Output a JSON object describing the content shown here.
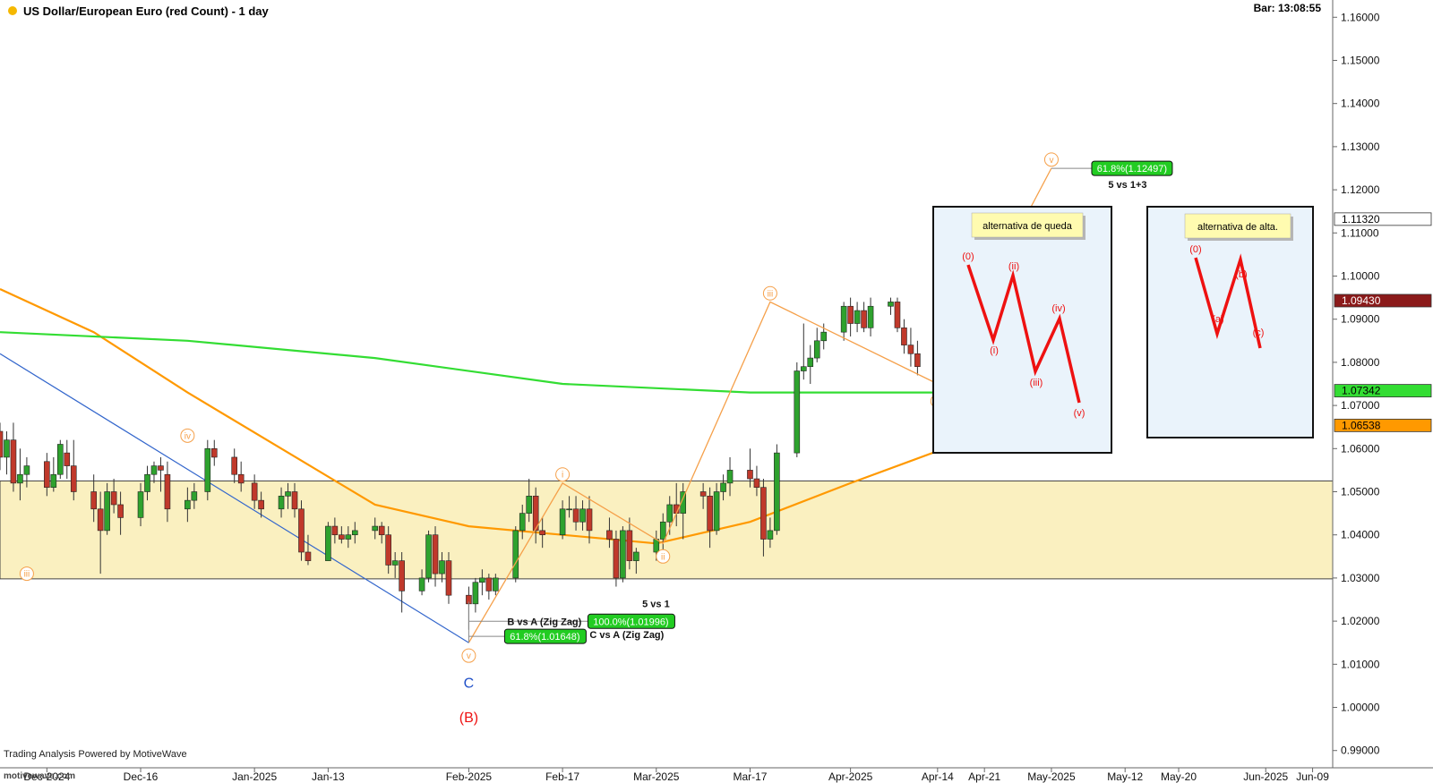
{
  "header": {
    "title": "US Dollar/European Euro (red Count) - 1 day",
    "bar_time": "Bar: 13:08:55"
  },
  "footer": {
    "powered_by": "Trading Analysis Powered by MotiveWave",
    "watermark": "motivewave.com"
  },
  "colors": {
    "up_candle": "#2ea22e",
    "down_candle": "#c0392b",
    "ma_fast": "#ff9900",
    "ma_slow": "#33dd33",
    "zone_fill": "#faf0c0",
    "wave_orange": "#f5a04a",
    "trendline": "#3366cc",
    "red_wave": "#ee1111",
    "box_bg": "#eaf3fb",
    "fib_green": "#22cc22"
  },
  "chart_data": {
    "type": "candlestick",
    "instrument": "US Dollar/European Euro",
    "timeframe": "1 day",
    "y_axis": {
      "ylim": [
        0.986,
        1.164
      ],
      "ticks": [
        0.99,
        1.0,
        1.01,
        1.02,
        1.03,
        1.04,
        1.05,
        1.06,
        1.07,
        1.08,
        1.09,
        1.1,
        1.11,
        1.12,
        1.13,
        1.14,
        1.15,
        1.16
      ],
      "tick_labels": [
        "0.99000",
        "1.00000",
        "1.01000",
        "1.02000",
        "1.03000",
        "1.04000",
        "1.05000",
        "1.06000",
        "1.07000",
        "1.08000",
        "1.09000",
        "1.10000",
        "1.11000",
        "1.12000",
        "1.13000",
        "1.14000",
        "1.15000",
        "1.16000"
      ]
    },
    "x_axis": {
      "date_range": [
        "2024-11-25",
        "2025-06-12"
      ],
      "ticks": [
        {
          "date": "2024-12-02",
          "label": "Dec-2024"
        },
        {
          "date": "2024-12-16",
          "label": "Dec-16"
        },
        {
          "date": "2025-01-02",
          "label": "Jan-2025"
        },
        {
          "date": "2025-01-13",
          "label": "Jan-13"
        },
        {
          "date": "2025-02-03",
          "label": "Feb-2025"
        },
        {
          "date": "2025-02-17",
          "label": "Feb-17"
        },
        {
          "date": "2025-03-03",
          "label": "Mar-2025"
        },
        {
          "date": "2025-03-17",
          "label": "Mar-17"
        },
        {
          "date": "2025-04-01",
          "label": "Apr-2025"
        },
        {
          "date": "2025-04-14",
          "label": "Apr-14"
        },
        {
          "date": "2025-04-21",
          "label": "Apr-21"
        },
        {
          "date": "2025-05-01",
          "label": "May-2025"
        },
        {
          "date": "2025-05-12",
          "label": "May-12"
        },
        {
          "date": "2025-05-20",
          "label": "May-20"
        },
        {
          "date": "2025-06-02",
          "label": "Jun-2025"
        },
        {
          "date": "2025-06-09",
          "label": "Jun-09"
        }
      ]
    },
    "ohlc": [
      [
        "2024-11-25",
        1.064,
        1.066,
        1.055,
        1.058
      ],
      [
        "2024-11-26",
        1.058,
        1.064,
        1.054,
        1.062
      ],
      [
        "2024-11-27",
        1.062,
        1.066,
        1.05,
        1.052
      ],
      [
        "2024-11-28",
        1.052,
        1.06,
        1.048,
        1.054
      ],
      [
        "2024-11-29",
        1.054,
        1.058,
        1.051,
        1.056
      ],
      [
        "2024-12-02",
        1.057,
        1.059,
        1.049,
        1.051
      ],
      [
        "2024-12-03",
        1.051,
        1.058,
        1.05,
        1.054
      ],
      [
        "2024-12-04",
        1.054,
        1.062,
        1.053,
        1.061
      ],
      [
        "2024-12-05",
        1.059,
        1.062,
        1.053,
        1.056
      ],
      [
        "2024-12-06",
        1.056,
        1.062,
        1.048,
        1.05
      ],
      [
        "2024-12-09",
        1.05,
        1.054,
        1.043,
        1.046
      ],
      [
        "2024-12-10",
        1.046,
        1.05,
        1.031,
        1.041
      ],
      [
        "2024-12-11",
        1.041,
        1.052,
        1.04,
        1.05
      ],
      [
        "2024-12-12",
        1.05,
        1.053,
        1.045,
        1.047
      ],
      [
        "2024-12-13",
        1.047,
        1.05,
        1.04,
        1.044
      ],
      [
        "2024-12-16",
        1.044,
        1.052,
        1.042,
        1.05
      ],
      [
        "2024-12-17",
        1.05,
        1.056,
        1.048,
        1.054
      ],
      [
        "2024-12-18",
        1.054,
        1.057,
        1.052,
        1.056
      ],
      [
        "2024-12-19",
        1.056,
        1.058,
        1.05,
        1.055
      ],
      [
        "2024-12-20",
        1.054,
        1.057,
        1.043,
        1.046
      ],
      [
        "2024-12-23",
        1.046,
        1.051,
        1.043,
        1.048
      ],
      [
        "2024-12-24",
        1.048,
        1.052,
        1.046,
        1.05
      ],
      [
        "2024-12-26",
        1.05,
        1.062,
        1.048,
        1.06
      ],
      [
        "2024-12-27",
        1.06,
        1.062,
        1.056,
        1.058
      ],
      [
        "2024-12-30",
        1.058,
        1.06,
        1.052,
        1.054
      ],
      [
        "2024-12-31",
        1.054,
        1.057,
        1.05,
        1.052
      ],
      [
        "2025-01-02",
        1.052,
        1.054,
        1.046,
        1.048
      ],
      [
        "2025-01-03",
        1.048,
        1.05,
        1.044,
        1.046
      ],
      [
        "2025-01-06",
        1.046,
        1.051,
        1.044,
        1.049
      ],
      [
        "2025-01-07",
        1.049,
        1.052,
        1.046,
        1.05
      ],
      [
        "2025-01-08",
        1.05,
        1.052,
        1.044,
        1.046
      ],
      [
        "2025-01-09",
        1.046,
        1.048,
        1.034,
        1.036
      ],
      [
        "2025-01-10",
        1.036,
        1.04,
        1.033,
        1.034
      ],
      [
        "2025-01-13",
        1.034,
        1.043,
        1.034,
        1.042
      ],
      [
        "2025-01-14",
        1.042,
        1.044,
        1.038,
        1.04
      ],
      [
        "2025-01-15",
        1.04,
        1.042,
        1.038,
        1.039
      ],
      [
        "2025-01-16",
        1.039,
        1.042,
        1.037,
        1.04
      ],
      [
        "2025-01-17",
        1.04,
        1.043,
        1.038,
        1.041
      ],
      [
        "2025-01-20",
        1.041,
        1.044,
        1.039,
        1.042
      ],
      [
        "2025-01-21",
        1.042,
        1.043,
        1.038,
        1.04
      ],
      [
        "2025-01-22",
        1.04,
        1.042,
        1.031,
        1.033
      ],
      [
        "2025-01-23",
        1.033,
        1.036,
        1.03,
        1.034
      ],
      [
        "2025-01-24",
        1.034,
        1.036,
        1.022,
        1.027
      ],
      [
        "2025-01-27",
        1.027,
        1.032,
        1.026,
        1.03
      ],
      [
        "2025-01-28",
        1.03,
        1.041,
        1.029,
        1.04
      ],
      [
        "2025-01-29",
        1.04,
        1.042,
        1.028,
        1.031
      ],
      [
        "2025-01-30",
        1.031,
        1.036,
        1.029,
        1.034
      ],
      [
        "2025-01-31",
        1.034,
        1.036,
        1.024,
        1.026
      ],
      [
        "2025-02-03",
        1.026,
        1.028,
        1.018,
        1.024
      ],
      [
        "2025-02-04",
        1.024,
        1.03,
        1.022,
        1.029
      ],
      [
        "2025-02-05",
        1.029,
        1.032,
        1.026,
        1.03
      ],
      [
        "2025-02-06",
        1.03,
        1.031,
        1.025,
        1.027
      ],
      [
        "2025-02-07",
        1.027,
        1.031,
        1.026,
        1.03
      ],
      [
        "2025-02-10",
        1.03,
        1.042,
        1.029,
        1.041
      ],
      [
        "2025-02-11",
        1.041,
        1.047,
        1.039,
        1.045
      ],
      [
        "2025-02-12",
        1.045,
        1.053,
        1.043,
        1.049
      ],
      [
        "2025-02-13",
        1.049,
        1.051,
        1.038,
        1.041
      ],
      [
        "2025-02-14",
        1.041,
        1.044,
        1.037,
        1.04
      ],
      [
        "2025-02-17",
        1.04,
        1.048,
        1.039,
        1.046
      ],
      [
        "2025-02-18",
        1.046,
        1.049,
        1.044,
        1.046
      ],
      [
        "2025-02-19",
        1.046,
        1.049,
        1.041,
        1.043
      ],
      [
        "2025-02-20",
        1.043,
        1.048,
        1.041,
        1.046
      ],
      [
        "2025-02-21",
        1.046,
        1.049,
        1.038,
        1.041
      ],
      [
        "2025-02-24",
        1.041,
        1.044,
        1.037,
        1.039
      ],
      [
        "2025-02-25",
        1.039,
        1.041,
        1.028,
        1.03
      ],
      [
        "2025-02-26",
        1.03,
        1.042,
        1.029,
        1.041
      ],
      [
        "2025-02-27",
        1.041,
        1.044,
        1.032,
        1.034
      ],
      [
        "2025-02-28",
        1.034,
        1.037,
        1.031,
        1.036
      ],
      [
        "2025-03-03",
        1.036,
        1.041,
        1.034,
        1.039
      ],
      [
        "2025-03-04",
        1.039,
        1.045,
        1.034,
        1.043
      ],
      [
        "2025-03-05",
        1.043,
        1.049,
        1.04,
        1.047
      ],
      [
        "2025-03-06",
        1.047,
        1.052,
        1.042,
        1.045
      ],
      [
        "2025-03-07",
        1.045,
        1.052,
        1.039,
        1.05
      ],
      [
        "2025-03-10",
        1.05,
        1.052,
        1.046,
        1.049
      ],
      [
        "2025-03-11",
        1.049,
        1.051,
        1.037,
        1.041
      ],
      [
        "2025-03-12",
        1.041,
        1.052,
        1.04,
        1.05
      ],
      [
        "2025-03-13",
        1.05,
        1.054,
        1.048,
        1.052
      ],
      [
        "2025-03-14",
        1.052,
        1.058,
        1.049,
        1.055
      ],
      [
        "2025-03-17",
        1.055,
        1.06,
        1.051,
        1.053
      ],
      [
        "2025-03-18",
        1.053,
        1.056,
        1.049,
        1.051
      ],
      [
        "2025-03-19",
        1.051,
        1.053,
        1.035,
        1.039
      ],
      [
        "2025-03-20",
        1.039,
        1.044,
        1.037,
        1.041
      ],
      [
        "2025-03-21",
        1.041,
        1.061,
        1.04,
        1.059
      ],
      [
        "2025-03-24",
        1.059,
        1.08,
        1.058,
        1.078
      ],
      [
        "2025-03-25",
        1.078,
        1.089,
        1.076,
        1.079
      ],
      [
        "2025-03-26",
        1.079,
        1.084,
        1.075,
        1.081
      ],
      [
        "2025-03-27",
        1.081,
        1.088,
        1.08,
        1.085
      ],
      [
        "2025-03-28",
        1.085,
        1.089,
        1.083,
        1.087
      ],
      [
        "2025-03-31",
        1.087,
        1.094,
        1.085,
        1.093
      ],
      [
        "2025-04-01",
        1.093,
        1.095,
        1.086,
        1.089
      ],
      [
        "2025-04-02",
        1.089,
        1.094,
        1.087,
        1.092
      ],
      [
        "2025-04-03",
        1.092,
        1.094,
        1.087,
        1.088
      ],
      [
        "2025-04-04",
        1.088,
        1.095,
        1.086,
        1.093
      ],
      [
        "2025-04-07",
        1.093,
        1.095,
        1.091,
        1.094
      ],
      [
        "2025-04-08",
        1.094,
        1.095,
        1.087,
        1.088
      ],
      [
        "2025-04-09",
        1.088,
        1.09,
        1.082,
        1.084
      ],
      [
        "2025-04-10",
        1.084,
        1.088,
        1.079,
        1.082
      ],
      [
        "2025-04-11",
        1.082,
        1.085,
        1.077,
        1.079
      ],
      [
        "2025-04-14",
        1.079,
        1.081,
        1.075,
        1.077
      ],
      [
        "2025-04-15",
        1.077,
        1.083,
        1.074,
        1.081
      ],
      [
        "2025-04-16",
        1.081,
        1.086,
        1.078,
        1.084
      ],
      [
        "2025-04-17",
        1.084,
        1.087,
        1.08,
        1.082
      ],
      [
        "2025-04-18",
        1.082,
        1.085,
        1.077,
        1.079
      ],
      [
        "2025-04-21",
        1.079,
        1.094,
        1.078,
        1.092
      ],
      [
        "2025-04-22",
        1.092,
        1.114,
        1.09,
        1.105
      ],
      [
        "2025-04-23",
        1.105,
        1.107,
        1.092,
        1.096
      ],
      [
        "2025-04-24",
        1.096,
        1.103,
        1.091,
        1.093
      ],
      [
        "2025-04-25",
        1.093,
        1.098,
        1.088,
        1.09
      ],
      [
        "2025-04-28",
        1.09,
        1.1,
        1.089,
        1.098
      ],
      [
        "2025-04-29",
        1.098,
        1.107,
        1.091,
        1.097
      ],
      [
        "2025-04-30",
        1.097,
        1.113,
        1.095,
        1.112
      ]
    ],
    "moving_averages": [
      {
        "name": "fast",
        "color": "#ff9900",
        "points": [
          [
            "2024-11-25",
            1.097
          ],
          [
            "2024-12-09",
            1.087
          ],
          [
            "2024-12-23",
            1.073
          ],
          [
            "2025-01-06",
            1.06
          ],
          [
            "2025-01-20",
            1.047
          ],
          [
            "2025-02-03",
            1.042
          ],
          [
            "2025-02-17",
            1.04
          ],
          [
            "2025-03-03",
            1.038
          ],
          [
            "2025-03-17",
            1.043
          ],
          [
            "2025-04-01",
            1.052
          ],
          [
            "2025-04-15",
            1.06
          ],
          [
            "2025-04-30",
            1.066
          ]
        ]
      },
      {
        "name": "slow",
        "color": "#33dd33",
        "points": [
          [
            "2024-11-25",
            1.087
          ],
          [
            "2024-12-23",
            1.085
          ],
          [
            "2025-01-20",
            1.081
          ],
          [
            "2025-02-17",
            1.075
          ],
          [
            "2025-03-17",
            1.073
          ],
          [
            "2025-04-30",
            1.073
          ]
        ]
      }
    ],
    "zone": {
      "low": 1.0298,
      "high": 1.0525
    },
    "trendline": {
      "points": [
        [
          "2024-11-25",
          1.082
        ],
        [
          "2025-02-03",
          1.015
        ]
      ]
    },
    "wave_path": [
      [
        "2025-02-03",
        1.015
      ],
      [
        "2025-02-17",
        1.052
      ],
      [
        "2025-03-04",
        1.038
      ],
      [
        "2025-03-20",
        1.094
      ],
      [
        "2025-04-14",
        1.075
      ],
      [
        "2025-05-01",
        1.125
      ]
    ],
    "wave_labels": [
      {
        "label": "iii",
        "date": "2024-11-29",
        "price": 1.031,
        "color": "#f5a04a"
      },
      {
        "label": "iv",
        "date": "2024-12-23",
        "price": 1.063,
        "color": "#f5a04a"
      },
      {
        "label": "v",
        "date": "2025-02-03",
        "price": 1.012,
        "color": "#f5a04a"
      },
      {
        "label": "i",
        "date": "2025-02-17",
        "price": 1.054,
        "color": "#f5a04a"
      },
      {
        "label": "ii",
        "date": "2025-03-04",
        "price": 1.035,
        "color": "#f5a04a"
      },
      {
        "label": "iii",
        "date": "2025-03-20",
        "price": 1.096,
        "color": "#f5a04a"
      },
      {
        "label": "iv",
        "date": "2025-04-14",
        "price": 1.071,
        "color": "#f5a04a"
      },
      {
        "label": "v",
        "date": "2025-05-01",
        "price": 1.127,
        "color": "#f5a04a"
      }
    ],
    "degree_labels": [
      {
        "label": "C",
        "date": "2025-02-03",
        "price": 1.0075,
        "color": "#1f4fc8"
      },
      {
        "label": "(B)",
        "date": "2025-02-03",
        "price": 1.0045,
        "color": "#ee1111"
      }
    ],
    "fib_targets": [
      {
        "label": "61.8%(1.12497)",
        "value": 1.12497,
        "note": "5 vs 1+3"
      },
      {
        "label": "100.0%(1.01996)",
        "value": 1.01996,
        "note": "B vs A (Zig Zag)"
      },
      {
        "label": "61.8%(1.01648)",
        "value": 1.01648,
        "note": "C vs A (Zig Zag)"
      }
    ],
    "fib_note_top": "5 vs 1",
    "price_markers": [
      {
        "label": "1.11320",
        "value": 1.1132,
        "bg": "#ffffff",
        "fg": "#000000"
      },
      {
        "label": "1.09430",
        "value": 1.0943,
        "bg": "#8b1a1a",
        "fg": "#ffffff"
      },
      {
        "label": "1.07342",
        "value": 1.07342,
        "bg": "#33dd33",
        "fg": "#000000"
      },
      {
        "label": "1.06538",
        "value": 1.06538,
        "bg": "#ff9900",
        "fg": "#000000"
      }
    ]
  },
  "scenarios": [
    {
      "title": "alternativa de queda",
      "labels": [
        "(0)",
        "(i)",
        "(ii)",
        "(iii)",
        "(iv)",
        "(v)"
      ]
    },
    {
      "title": "alternativa de alta.",
      "labels": [
        "(0)",
        "(a)",
        "(b)",
        "(c)"
      ]
    }
  ]
}
